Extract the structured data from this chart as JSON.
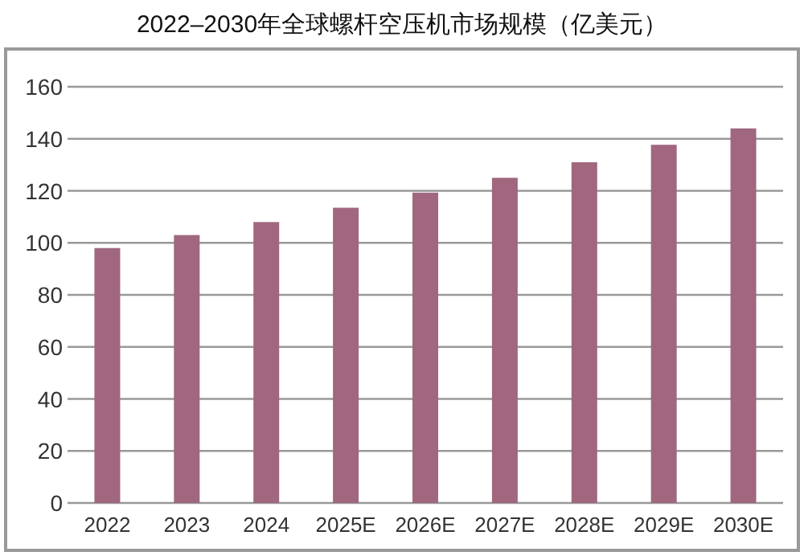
{
  "chart_data": {
    "type": "bar",
    "title": "2022–2030年全球螺杆空压机市场规模（亿美元）",
    "categories": [
      "2022",
      "2023",
      "2024",
      "2025E",
      "2026E",
      "2027E",
      "2028E",
      "2029E",
      "2030E"
    ],
    "values": [
      98,
      103,
      108,
      113.5,
      119.3,
      125,
      131,
      137.7,
      144
    ],
    "color": "#a0677f",
    "ylim": [
      0,
      160
    ],
    "yticks": [
      0,
      20,
      40,
      60,
      80,
      100,
      120,
      140,
      160
    ],
    "grid": "y"
  }
}
